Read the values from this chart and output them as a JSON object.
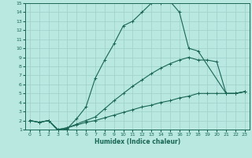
{
  "xlabel": "Humidex (Indice chaleur)",
  "xlim": [
    -0.5,
    23.5
  ],
  "ylim": [
    1,
    15
  ],
  "xticks": [
    0,
    1,
    2,
    3,
    4,
    5,
    6,
    7,
    8,
    9,
    10,
    11,
    12,
    13,
    14,
    15,
    16,
    17,
    18,
    19,
    20,
    21,
    22,
    23
  ],
  "yticks": [
    1,
    2,
    3,
    4,
    5,
    6,
    7,
    8,
    9,
    10,
    11,
    12,
    13,
    14,
    15
  ],
  "bg_color": "#b8e8e0",
  "grid_color": "#9ecfca",
  "line_color": "#1a6655",
  "line1_x": [
    0,
    1,
    2,
    3,
    4,
    5,
    6,
    7,
    8,
    9,
    10,
    11,
    12,
    13,
    14,
    15,
    16,
    17,
    18,
    21,
    22,
    23
  ],
  "line1_y": [
    2,
    1.8,
    2.0,
    0.9,
    1.1,
    2.2,
    3.5,
    6.7,
    8.7,
    10.5,
    12.5,
    13.0,
    14.0,
    15.0,
    15.0,
    15.2,
    14.0,
    10.0,
    9.7,
    5.0,
    5.0,
    5.2
  ],
  "line2_x": [
    0,
    1,
    2,
    3,
    4,
    5,
    6,
    7,
    8,
    9,
    10,
    11,
    12,
    13,
    14,
    15,
    16,
    17,
    18,
    19,
    20,
    21,
    22,
    23
  ],
  "line2_y": [
    2,
    1.8,
    2.0,
    1.0,
    1.2,
    1.6,
    2.0,
    2.4,
    3.3,
    4.2,
    5.0,
    5.8,
    6.5,
    7.2,
    7.8,
    8.3,
    8.7,
    9.0,
    8.7,
    8.7,
    8.5,
    5.0,
    5.0,
    5.2
  ],
  "line3_x": [
    0,
    1,
    2,
    3,
    4,
    5,
    6,
    7,
    8,
    9,
    10,
    11,
    12,
    13,
    14,
    15,
    16,
    17,
    18,
    19,
    20,
    21,
    22,
    23
  ],
  "line3_y": [
    2,
    1.8,
    2.0,
    1.0,
    1.2,
    1.5,
    1.8,
    2.0,
    2.3,
    2.6,
    2.9,
    3.2,
    3.5,
    3.7,
    4.0,
    4.2,
    4.5,
    4.7,
    5.0,
    5.0,
    5.0,
    5.0,
    5.0,
    5.2
  ]
}
